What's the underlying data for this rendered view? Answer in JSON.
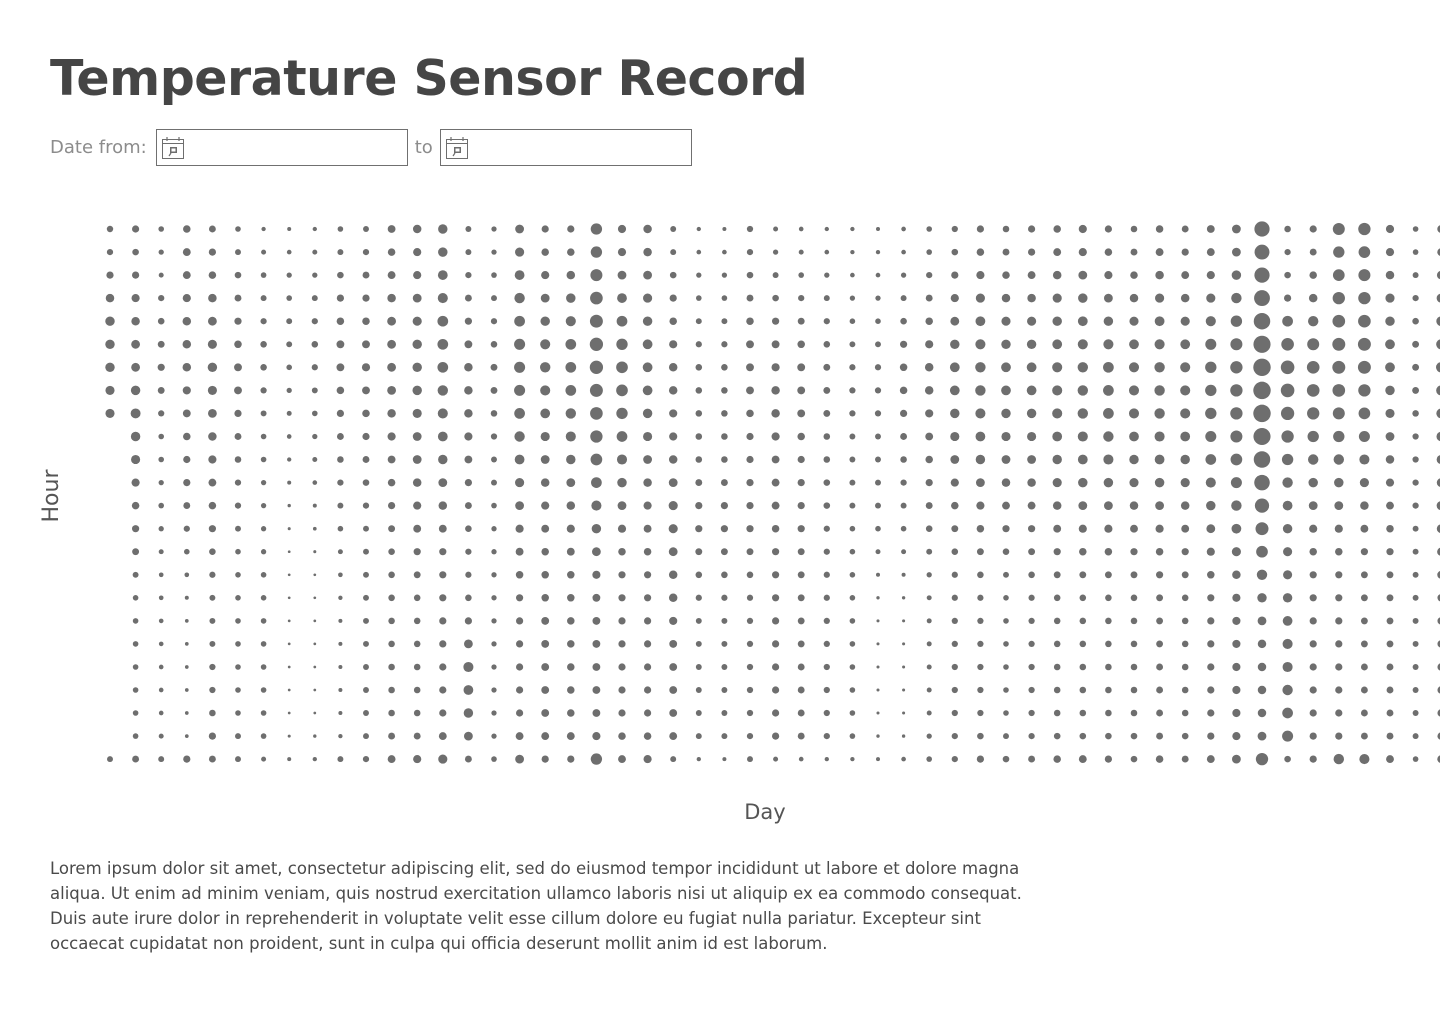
{
  "page": {
    "title": "Temperature Sensor Record",
    "date_filter": {
      "from_label": "Date from:",
      "to_label": "to",
      "from_value": "",
      "to_value": "",
      "icon": "calendar-icon"
    },
    "description": "Lorem ipsum dolor sit amet, consectetur adipiscing elit, sed do eiusmod tempor incididunt ut labore et dolore magna aliqua. Ut enim ad minim veniam, quis nostrud exercitation ullamco laboris nisi ut aliquip ex ea commodo consequat. Duis aute irure dolor in reprehenderit in voluptate velit esse cillum dolore eu fugiat nulla pariatur. Excepteur sint occaecat cupidatat non proident, sunt in culpa qui officia deserunt mollit anim id est laborum."
  },
  "chart_data": {
    "type": "scatter",
    "xlabel": "Day",
    "ylabel": "Hour",
    "grid": false,
    "legend": "none",
    "marker_color": "#6e6e6e",
    "encoding": "dot size = relative reading (0-1)",
    "days": 53,
    "hours": 24,
    "values": [
      [
        0.25,
        0.24,
        0.3,
        0.38,
        0.44,
        0.44,
        0.44,
        0.42,
        0.42,
        null,
        null,
        null,
        null,
        null,
        null,
        null,
        null,
        null,
        null,
        null,
        null,
        null,
        null,
        0.22
      ],
      [
        0.3,
        0.26,
        0.3,
        0.36,
        0.38,
        0.4,
        0.4,
        0.44,
        0.47,
        0.44,
        0.42,
        0.36,
        0.32,
        0.3,
        0.28,
        0.22,
        0.2,
        0.2,
        0.2,
        0.2,
        0.2,
        0.2,
        0.2,
        0.28
      ],
      [
        0.2,
        0.18,
        0.16,
        0.24,
        0.26,
        0.28,
        0.3,
        0.28,
        0.24,
        0.2,
        0.2,
        0.18,
        0.2,
        0.18,
        0.16,
        0.14,
        0.14,
        0.14,
        0.14,
        0.14,
        0.14,
        0.14,
        0.16,
        0.22
      ],
      [
        0.32,
        0.34,
        0.34,
        0.36,
        0.38,
        0.38,
        0.38,
        0.36,
        0.34,
        0.32,
        0.3,
        0.3,
        0.28,
        0.24,
        0.2,
        0.14,
        0.1,
        0.08,
        0.08,
        0.08,
        0.08,
        0.08,
        0.08,
        0.3
      ],
      [
        0.28,
        0.3,
        0.32,
        0.38,
        0.4,
        0.42,
        0.44,
        0.42,
        0.4,
        0.38,
        0.36,
        0.34,
        0.32,
        0.3,
        0.26,
        0.24,
        0.22,
        0.22,
        0.22,
        0.24,
        0.24,
        0.26,
        0.3,
        0.28
      ],
      [
        0.2,
        0.22,
        0.26,
        0.28,
        0.3,
        0.32,
        0.34,
        0.34,
        0.3,
        0.28,
        0.26,
        0.24,
        0.24,
        0.22,
        0.2,
        0.2,
        0.2,
        0.2,
        0.2,
        0.2,
        0.2,
        0.2,
        0.22,
        0.22
      ],
      [
        0.12,
        0.16,
        0.2,
        0.22,
        0.24,
        0.26,
        0.26,
        0.24,
        0.22,
        0.2,
        0.2,
        0.18,
        0.18,
        0.18,
        0.18,
        0.2,
        0.2,
        0.2,
        0.2,
        0.2,
        0.2,
        0.2,
        0.2,
        0.16
      ],
      [
        0.1,
        0.14,
        0.18,
        0.2,
        0.22,
        0.22,
        0.2,
        0.18,
        0.16,
        0.14,
        0.12,
        0.1,
        0.06,
        0.04,
        0.02,
        0.02,
        0.02,
        0.02,
        0.02,
        0.02,
        0.02,
        0.02,
        0.04,
        0.1
      ],
      [
        0.12,
        0.16,
        0.18,
        0.22,
        0.24,
        0.26,
        0.24,
        0.22,
        0.2,
        0.18,
        0.16,
        0.14,
        0.1,
        0.08,
        0.04,
        0.02,
        0.02,
        0.02,
        0.02,
        0.02,
        0.02,
        0.02,
        0.06,
        0.12
      ],
      [
        0.2,
        0.22,
        0.26,
        0.3,
        0.32,
        0.34,
        0.34,
        0.32,
        0.3,
        0.28,
        0.26,
        0.24,
        0.22,
        0.2,
        0.16,
        0.14,
        0.12,
        0.1,
        0.1,
        0.1,
        0.1,
        0.1,
        0.12,
        0.22
      ],
      [
        0.22,
        0.24,
        0.28,
        0.3,
        0.32,
        0.34,
        0.36,
        0.34,
        0.32,
        0.3,
        0.28,
        0.26,
        0.24,
        0.22,
        0.22,
        0.22,
        0.22,
        0.22,
        0.22,
        0.22,
        0.22,
        0.22,
        0.22,
        0.24
      ],
      [
        0.34,
        0.32,
        0.34,
        0.38,
        0.4,
        0.4,
        0.4,
        0.4,
        0.38,
        0.36,
        0.34,
        0.32,
        0.3,
        0.28,
        0.26,
        0.26,
        0.26,
        0.26,
        0.26,
        0.26,
        0.26,
        0.26,
        0.28,
        0.34
      ],
      [
        0.38,
        0.36,
        0.36,
        0.4,
        0.42,
        0.44,
        0.44,
        0.44,
        0.42,
        0.4,
        0.4,
        0.38,
        0.36,
        0.34,
        0.3,
        0.28,
        0.26,
        0.26,
        0.26,
        0.26,
        0.26,
        0.26,
        0.28,
        0.36
      ],
      [
        0.44,
        0.44,
        0.46,
        0.48,
        0.52,
        0.52,
        0.52,
        0.5,
        0.48,
        0.46,
        0.44,
        0.4,
        0.38,
        0.34,
        0.3,
        0.3,
        0.3,
        0.3,
        0.3,
        0.3,
        0.3,
        0.3,
        0.34,
        0.42
      ],
      [
        0.22,
        0.22,
        0.24,
        0.28,
        0.3,
        0.34,
        0.38,
        0.38,
        0.38,
        0.36,
        0.34,
        0.3,
        0.28,
        0.26,
        0.24,
        0.24,
        0.26,
        0.3,
        0.4,
        0.48,
        0.46,
        0.44,
        0.4,
        0.28
      ],
      [
        0.18,
        0.18,
        0.2,
        0.22,
        0.24,
        0.26,
        0.28,
        0.28,
        0.26,
        0.24,
        0.22,
        0.22,
        0.2,
        0.18,
        0.18,
        0.18,
        0.18,
        0.18,
        0.18,
        0.18,
        0.18,
        0.18,
        0.18,
        0.2
      ],
      [
        0.4,
        0.42,
        0.46,
        0.5,
        0.52,
        0.54,
        0.54,
        0.54,
        0.52,
        0.5,
        0.46,
        0.42,
        0.4,
        0.36,
        0.34,
        0.32,
        0.3,
        0.3,
        0.3,
        0.3,
        0.3,
        0.3,
        0.34,
        0.4
      ],
      [
        0.3,
        0.32,
        0.36,
        0.4,
        0.44,
        0.48,
        0.5,
        0.48,
        0.46,
        0.42,
        0.4,
        0.38,
        0.36,
        0.34,
        0.32,
        0.32,
        0.32,
        0.34,
        0.34,
        0.34,
        0.34,
        0.34,
        0.34,
        0.3
      ],
      [
        0.3,
        0.32,
        0.38,
        0.44,
        0.48,
        0.52,
        0.52,
        0.52,
        0.5,
        0.48,
        0.44,
        0.4,
        0.38,
        0.36,
        0.34,
        0.32,
        0.32,
        0.32,
        0.32,
        0.32,
        0.32,
        0.32,
        0.34,
        0.3
      ],
      [
        0.56,
        0.56,
        0.6,
        0.64,
        0.66,
        0.68,
        0.68,
        0.66,
        0.64,
        0.62,
        0.58,
        0.52,
        0.48,
        0.44,
        0.4,
        0.36,
        0.34,
        0.34,
        0.34,
        0.34,
        0.34,
        0.34,
        0.36,
        0.56
      ],
      [
        0.36,
        0.36,
        0.4,
        0.46,
        0.52,
        0.56,
        0.58,
        0.58,
        0.56,
        0.52,
        0.48,
        0.44,
        0.4,
        0.36,
        0.32,
        0.3,
        0.3,
        0.3,
        0.3,
        0.3,
        0.3,
        0.3,
        0.32,
        0.34
      ],
      [
        0.38,
        0.38,
        0.4,
        0.42,
        0.44,
        0.46,
        0.46,
        0.46,
        0.44,
        0.42,
        0.4,
        0.38,
        0.36,
        0.34,
        0.32,
        0.3,
        0.3,
        0.3,
        0.3,
        0.3,
        0.3,
        0.3,
        0.32,
        0.36
      ],
      [
        0.22,
        0.22,
        0.26,
        0.3,
        0.32,
        0.36,
        0.38,
        0.38,
        0.36,
        0.36,
        0.38,
        0.4,
        0.42,
        0.42,
        0.4,
        0.38,
        0.38,
        0.36,
        0.34,
        0.34,
        0.34,
        0.34,
        0.34,
        0.22
      ],
      [
        0.12,
        0.14,
        0.18,
        0.2,
        0.22,
        0.24,
        0.26,
        0.26,
        0.26,
        0.26,
        0.26,
        0.28,
        0.3,
        0.3,
        0.28,
        0.26,
        0.24,
        0.22,
        0.22,
        0.22,
        0.22,
        0.22,
        0.22,
        0.12
      ],
      [
        0.1,
        0.14,
        0.18,
        0.2,
        0.22,
        0.24,
        0.26,
        0.26,
        0.26,
        0.26,
        0.26,
        0.28,
        0.3,
        0.3,
        0.28,
        0.26,
        0.24,
        0.22,
        0.22,
        0.22,
        0.22,
        0.22,
        0.22,
        0.1
      ],
      [
        0.24,
        0.24,
        0.26,
        0.28,
        0.32,
        0.34,
        0.34,
        0.34,
        0.32,
        0.3,
        0.3,
        0.3,
        0.3,
        0.3,
        0.28,
        0.26,
        0.24,
        0.24,
        0.24,
        0.24,
        0.24,
        0.24,
        0.24,
        0.22
      ],
      [
        0.16,
        0.18,
        0.22,
        0.26,
        0.3,
        0.34,
        0.36,
        0.38,
        0.38,
        0.36,
        0.34,
        0.34,
        0.34,
        0.32,
        0.3,
        0.3,
        0.3,
        0.3,
        0.3,
        0.3,
        0.3,
        0.3,
        0.3,
        0.16
      ],
      [
        0.14,
        0.16,
        0.2,
        0.24,
        0.28,
        0.32,
        0.34,
        0.34,
        0.34,
        0.32,
        0.3,
        0.3,
        0.3,
        0.3,
        0.28,
        0.28,
        0.28,
        0.28,
        0.28,
        0.28,
        0.28,
        0.28,
        0.28,
        0.14
      ],
      [
        0.12,
        0.14,
        0.18,
        0.22,
        0.24,
        0.26,
        0.28,
        0.28,
        0.28,
        0.26,
        0.26,
        0.26,
        0.26,
        0.24,
        0.24,
        0.24,
        0.24,
        0.24,
        0.24,
        0.24,
        0.24,
        0.24,
        0.24,
        0.12
      ],
      [
        0.12,
        0.12,
        0.14,
        0.18,
        0.2,
        0.22,
        0.24,
        0.24,
        0.24,
        0.22,
        0.22,
        0.22,
        0.22,
        0.2,
        0.2,
        0.2,
        0.2,
        0.2,
        0.2,
        0.2,
        0.2,
        0.2,
        0.2,
        0.12
      ],
      [
        0.1,
        0.12,
        0.14,
        0.18,
        0.2,
        0.22,
        0.24,
        0.24,
        0.24,
        0.22,
        0.22,
        0.22,
        0.22,
        0.2,
        0.16,
        0.1,
        0.06,
        0.04,
        0.04,
        0.04,
        0.04,
        0.04,
        0.06,
        0.1
      ],
      [
        0.14,
        0.14,
        0.18,
        0.22,
        0.26,
        0.3,
        0.32,
        0.32,
        0.3,
        0.28,
        0.26,
        0.24,
        0.22,
        0.2,
        0.16,
        0.1,
        0.06,
        0.04,
        0.04,
        0.04,
        0.04,
        0.04,
        0.06,
        0.14
      ],
      [
        0.2,
        0.2,
        0.24,
        0.28,
        0.32,
        0.36,
        0.38,
        0.38,
        0.36,
        0.34,
        0.32,
        0.3,
        0.28,
        0.26,
        0.22,
        0.18,
        0.16,
        0.16,
        0.16,
        0.16,
        0.16,
        0.16,
        0.18,
        0.2
      ],
      [
        0.24,
        0.26,
        0.3,
        0.36,
        0.4,
        0.44,
        0.46,
        0.46,
        0.44,
        0.42,
        0.4,
        0.36,
        0.32,
        0.28,
        0.26,
        0.24,
        0.24,
        0.24,
        0.24,
        0.24,
        0.24,
        0.24,
        0.24,
        0.24
      ],
      [
        0.3,
        0.32,
        0.36,
        0.42,
        0.46,
        0.48,
        0.5,
        0.5,
        0.48,
        0.46,
        0.44,
        0.4,
        0.36,
        0.32,
        0.28,
        0.26,
        0.24,
        0.24,
        0.24,
        0.24,
        0.24,
        0.24,
        0.26,
        0.3
      ],
      [
        0.26,
        0.28,
        0.32,
        0.38,
        0.42,
        0.44,
        0.46,
        0.46,
        0.44,
        0.42,
        0.4,
        0.38,
        0.34,
        0.3,
        0.26,
        0.22,
        0.2,
        0.2,
        0.2,
        0.2,
        0.2,
        0.2,
        0.22,
        0.26
      ],
      [
        0.3,
        0.3,
        0.34,
        0.38,
        0.42,
        0.44,
        0.46,
        0.46,
        0.44,
        0.42,
        0.4,
        0.38,
        0.34,
        0.3,
        0.28,
        0.26,
        0.24,
        0.24,
        0.24,
        0.24,
        0.24,
        0.24,
        0.24,
        0.28
      ],
      [
        0.32,
        0.34,
        0.38,
        0.42,
        0.44,
        0.46,
        0.48,
        0.48,
        0.48,
        0.46,
        0.44,
        0.42,
        0.38,
        0.34,
        0.3,
        0.28,
        0.26,
        0.26,
        0.26,
        0.26,
        0.26,
        0.26,
        0.26,
        0.32
      ],
      [
        0.36,
        0.36,
        0.4,
        0.44,
        0.46,
        0.48,
        0.5,
        0.5,
        0.5,
        0.48,
        0.46,
        0.44,
        0.4,
        0.36,
        0.32,
        0.28,
        0.26,
        0.26,
        0.26,
        0.26,
        0.26,
        0.26,
        0.26,
        0.34
      ],
      [
        0.3,
        0.32,
        0.36,
        0.4,
        0.44,
        0.48,
        0.52,
        0.52,
        0.52,
        0.5,
        0.48,
        0.44,
        0.4,
        0.36,
        0.32,
        0.28,
        0.26,
        0.26,
        0.26,
        0.26,
        0.26,
        0.26,
        0.26,
        0.3
      ],
      [
        0.26,
        0.28,
        0.32,
        0.38,
        0.42,
        0.46,
        0.48,
        0.48,
        0.48,
        0.46,
        0.44,
        0.42,
        0.38,
        0.34,
        0.3,
        0.28,
        0.26,
        0.26,
        0.26,
        0.26,
        0.26,
        0.26,
        0.26,
        0.26
      ],
      [
        0.32,
        0.34,
        0.38,
        0.42,
        0.46,
        0.48,
        0.5,
        0.5,
        0.5,
        0.48,
        0.46,
        0.44,
        0.4,
        0.36,
        0.32,
        0.3,
        0.28,
        0.28,
        0.28,
        0.28,
        0.28,
        0.28,
        0.28,
        0.32
      ],
      [
        0.28,
        0.3,
        0.34,
        0.38,
        0.42,
        0.46,
        0.48,
        0.48,
        0.48,
        0.46,
        0.44,
        0.42,
        0.38,
        0.34,
        0.3,
        0.28,
        0.26,
        0.26,
        0.26,
        0.26,
        0.26,
        0.26,
        0.26,
        0.28
      ],
      [
        0.34,
        0.34,
        0.36,
        0.42,
        0.48,
        0.54,
        0.56,
        0.56,
        0.56,
        0.54,
        0.52,
        0.48,
        0.44,
        0.4,
        0.36,
        0.32,
        0.3,
        0.3,
        0.3,
        0.3,
        0.3,
        0.3,
        0.3,
        0.34
      ],
      [
        0.4,
        0.4,
        0.44,
        0.5,
        0.56,
        0.6,
        0.62,
        0.62,
        0.62,
        0.6,
        0.58,
        0.54,
        0.5,
        0.46,
        0.42,
        0.38,
        0.36,
        0.36,
        0.36,
        0.36,
        0.36,
        0.36,
        0.36,
        0.4
      ],
      [
        0.8,
        0.78,
        0.8,
        0.84,
        0.88,
        0.92,
        0.94,
        0.94,
        0.94,
        0.92,
        0.88,
        0.82,
        0.74,
        0.66,
        0.58,
        0.5,
        0.44,
        0.4,
        0.38,
        0.38,
        0.38,
        0.38,
        0.4,
        0.62
      ],
      [
        0.26,
        0.24,
        0.26,
        0.3,
        0.52,
        0.64,
        0.7,
        0.7,
        0.68,
        0.62,
        0.56,
        0.5,
        0.46,
        0.44,
        0.42,
        0.42,
        0.44,
        0.46,
        0.48,
        0.48,
        0.5,
        0.52,
        0.54,
        0.26
      ],
      [
        0.3,
        0.28,
        0.32,
        0.38,
        0.5,
        0.6,
        0.64,
        0.64,
        0.62,
        0.56,
        0.5,
        0.44,
        0.4,
        0.36,
        0.32,
        0.3,
        0.3,
        0.3,
        0.3,
        0.3,
        0.3,
        0.3,
        0.3,
        0.3
      ],
      [
        0.6,
        0.56,
        0.58,
        0.62,
        0.64,
        0.66,
        0.66,
        0.64,
        0.6,
        0.56,
        0.5,
        0.44,
        0.4,
        0.36,
        0.32,
        0.3,
        0.3,
        0.3,
        0.3,
        0.3,
        0.3,
        0.3,
        0.3,
        0.5
      ],
      [
        0.62,
        0.58,
        0.6,
        0.62,
        0.64,
        0.66,
        0.66,
        0.62,
        0.58,
        0.54,
        0.48,
        0.42,
        0.38,
        0.34,
        0.3,
        0.28,
        0.28,
        0.28,
        0.28,
        0.28,
        0.28,
        0.28,
        0.28,
        0.48
      ],
      [
        0.36,
        0.36,
        0.38,
        0.42,
        0.44,
        0.46,
        0.46,
        0.44,
        0.42,
        0.4,
        0.38,
        0.36,
        0.34,
        0.32,
        0.3,
        0.28,
        0.28,
        0.28,
        0.28,
        0.28,
        0.28,
        0.28,
        0.28,
        0.34
      ],
      [
        0.2,
        0.2,
        0.22,
        0.24,
        0.26,
        0.28,
        0.28,
        0.28,
        0.26,
        0.24,
        0.24,
        0.24,
        0.24,
        0.22,
        0.22,
        0.22,
        0.22,
        0.22,
        0.22,
        0.22,
        0.22,
        0.22,
        0.22,
        0.2
      ],
      [
        0.34,
        0.34,
        0.38,
        0.42,
        0.46,
        0.48,
        0.5,
        0.48,
        0.46,
        0.44,
        0.42,
        0.4,
        0.42,
        0.4,
        0.36,
        0.34,
        0.32,
        0.32,
        0.32,
        0.32,
        0.32,
        0.32,
        0.32,
        0.34
      ]
    ]
  }
}
